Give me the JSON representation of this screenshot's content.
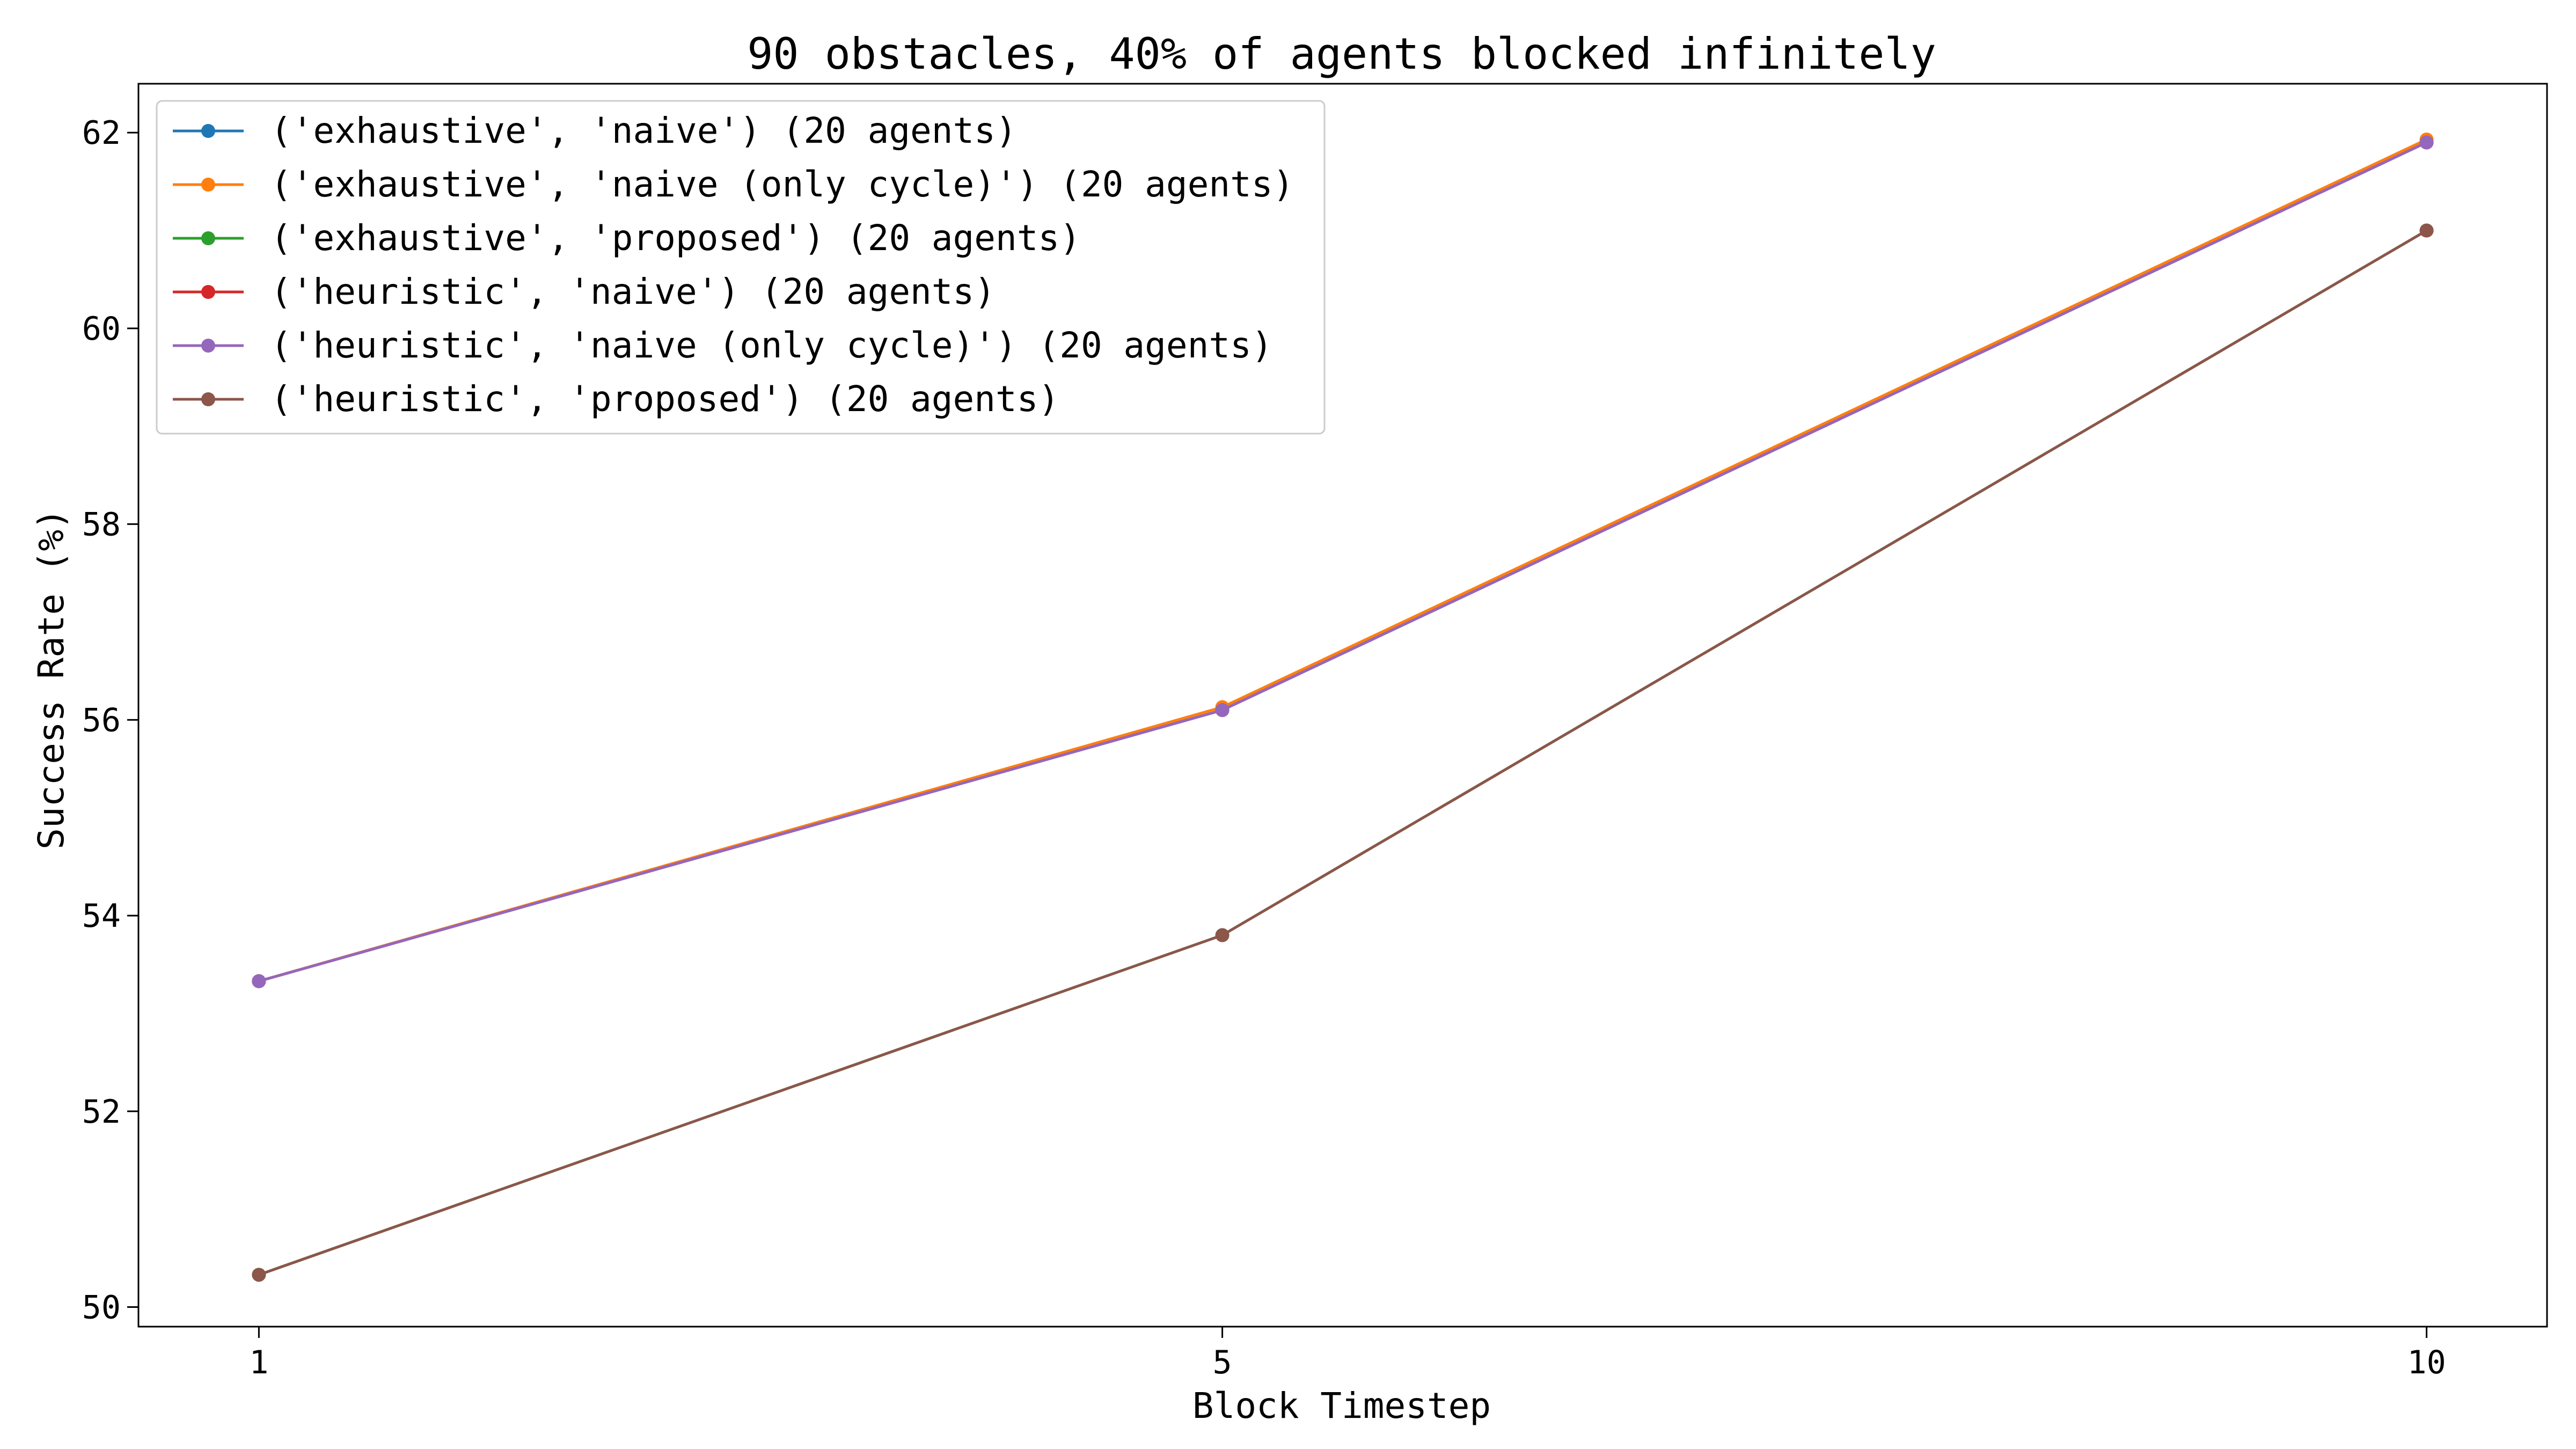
{
  "chart_data": {
    "type": "line",
    "title": "90 obstacles, 40% of agents blocked infinitely",
    "xlabel": "Block Timestep",
    "ylabel": "Success Rate (%)",
    "x": [
      1,
      5,
      10
    ],
    "x_ticks": [
      "1",
      "5",
      "10"
    ],
    "y_ticks": [
      "50",
      "52",
      "54",
      "56",
      "58",
      "60",
      "62"
    ],
    "xlim": [
      0.5,
      10.5
    ],
    "ylim": [
      49.8,
      62.5
    ],
    "grid": false,
    "legend_position": "upper left",
    "series": [
      {
        "name": "('exhaustive', 'naive') (20 agents)",
        "color": "#1f77b4",
        "values": [
          53.33,
          56.1,
          61.9
        ]
      },
      {
        "name": "('exhaustive', 'naive (only cycle)') (20 agents)",
        "color": "#ff7f0e",
        "values": [
          53.33,
          56.13,
          61.93
        ]
      },
      {
        "name": "('exhaustive', 'proposed') (20 agents)",
        "color": "#2ca02c",
        "values": [
          50.33,
          53.8,
          61.0
        ]
      },
      {
        "name": "('heuristic', 'naive') (20 agents)",
        "color": "#d62728",
        "values": [
          53.33,
          56.1,
          61.9
        ]
      },
      {
        "name": "('heuristic', 'naive (only cycle)') (20 agents)",
        "color": "#9467bd",
        "values": [
          53.33,
          56.1,
          61.9
        ]
      },
      {
        "name": "('heuristic', 'proposed') (20 agents)",
        "color": "#8c564b",
        "values": [
          50.33,
          53.8,
          61.0
        ]
      }
    ]
  }
}
